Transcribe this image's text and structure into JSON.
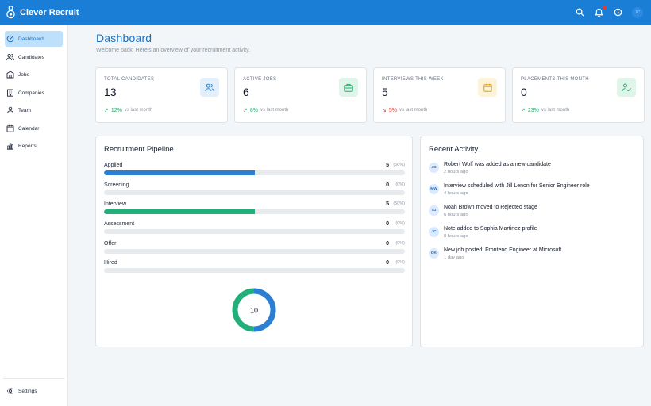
{
  "app": {
    "name": "Clever Recruit"
  },
  "header": {
    "avatar_initials": "JC"
  },
  "sidebar": {
    "items": [
      {
        "label": "Dashboard",
        "icon": "dashboard-icon",
        "active": true
      },
      {
        "label": "Candidates",
        "icon": "users-icon"
      },
      {
        "label": "Jobs",
        "icon": "jobs-icon"
      },
      {
        "label": "Companies",
        "icon": "building-icon"
      },
      {
        "label": "Team",
        "icon": "team-icon"
      },
      {
        "label": "Calendar",
        "icon": "calendar-icon"
      },
      {
        "label": "Reports",
        "icon": "bar-chart-icon"
      }
    ],
    "settings_label": "Settings"
  },
  "page": {
    "title": "Dashboard",
    "subtitle": "Welcome back! Here's an overview of your recruitment activity."
  },
  "stats": [
    {
      "label": "TOTAL CANDIDATES",
      "value": "13",
      "trend": "12%",
      "trend_dir": "up",
      "trend_rest": "vs last month",
      "icon": "users-icon",
      "color": "#2f86d6",
      "bg": "#e3f0fb"
    },
    {
      "label": "ACTIVE JOBS",
      "value": "6",
      "trend": "8%",
      "trend_dir": "up",
      "trend_rest": "vs last month",
      "icon": "briefcase-icon",
      "color": "#1fb06b",
      "bg": "#dff5ea"
    },
    {
      "label": "INTERVIEWS THIS WEEK",
      "value": "5",
      "trend": "5%",
      "trend_dir": "down",
      "trend_rest": "vs last month",
      "icon": "calendar-icon",
      "color": "#e6a11a",
      "bg": "#fdf3d9"
    },
    {
      "label": "PLACEMENTS THIS MONTH",
      "value": "0",
      "trend": "23%",
      "trend_dir": "up",
      "trend_rest": "vs last month",
      "icon": "user-check-icon",
      "color": "#1fb06b",
      "bg": "#dff5ea"
    }
  ],
  "pipeline": {
    "title": "Recruitment Pipeline",
    "stages": [
      {
        "name": "Applied",
        "count": "5",
        "pct": "(50%)",
        "fill": 0.5,
        "color": "#2a7fd4"
      },
      {
        "name": "Screening",
        "count": "0",
        "pct": "(0%)",
        "fill": 0,
        "color": "#2a7fd4"
      },
      {
        "name": "Interview",
        "count": "5",
        "pct": "(50%)",
        "fill": 0.5,
        "color": "#22b07a"
      },
      {
        "name": "Assessment",
        "count": "0",
        "pct": "(0%)",
        "fill": 0,
        "color": "#2a7fd4"
      },
      {
        "name": "Offer",
        "count": "0",
        "pct": "(0%)",
        "fill": 0,
        "color": "#2a7fd4"
      },
      {
        "name": "Hired",
        "count": "0",
        "pct": "(0%)",
        "fill": 0,
        "color": "#2a7fd4"
      }
    ],
    "donut_total": "10",
    "donut_segments": [
      {
        "value": 5,
        "color": "#2a7fd4"
      },
      {
        "value": 5,
        "color": "#22b07a"
      }
    ]
  },
  "activity": {
    "title": "Recent Activity",
    "items": [
      {
        "initials": "JC",
        "text": "Robert Wolf was added as a new candidate",
        "time": "2 hours ago"
      },
      {
        "initials": "MW",
        "text": "Interview scheduled with Jill Lenon for Senior Engineer role",
        "time": "4 hours ago"
      },
      {
        "initials": "SJ",
        "text": "Noah Brown moved to Rejected stage",
        "time": "6 hours ago"
      },
      {
        "initials": "JC",
        "text": "Note added to Sophia Martinez profile",
        "time": "8 hours ago"
      },
      {
        "initials": "DK",
        "text": "New job posted: Frontend Engineer at Microsoft",
        "time": "1 day ago"
      }
    ]
  }
}
